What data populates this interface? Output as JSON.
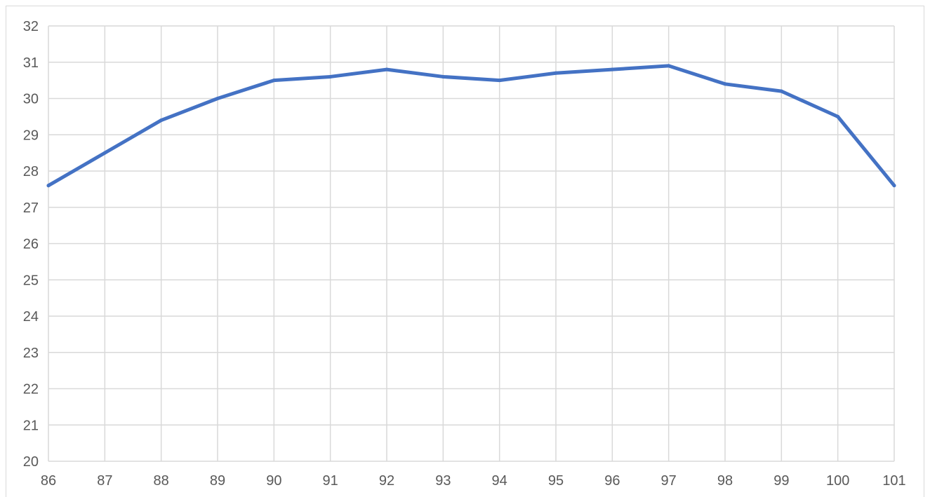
{
  "chart_data": {
    "type": "line",
    "title": "",
    "xlabel": "",
    "ylabel": "",
    "x": [
      86,
      87,
      88,
      89,
      90,
      91,
      92,
      93,
      94,
      95,
      96,
      97,
      98,
      99,
      100,
      101
    ],
    "series": [
      {
        "values": [
          27.6,
          28.5,
          29.4,
          30.0,
          30.5,
          30.6,
          30.8,
          30.6,
          30.5,
          30.7,
          30.8,
          30.9,
          30.4,
          30.2,
          29.5,
          27.6
        ]
      }
    ],
    "ylim": [
      20,
      32
    ],
    "y_ticks": [
      20,
      21,
      22,
      23,
      24,
      25,
      26,
      27,
      28,
      29,
      30,
      31,
      32
    ],
    "x_tick_labels": [
      "86",
      "87",
      "88",
      "89",
      "90",
      "91",
      "92",
      "93",
      "94",
      "95",
      "96",
      "97",
      "98",
      "99",
      "100",
      "101"
    ],
    "y_tick_labels": [
      "20",
      "21",
      "22",
      "23",
      "24",
      "25",
      "26",
      "27",
      "28",
      "29",
      "30",
      "31",
      "32"
    ],
    "grid": true,
    "legend": "none",
    "colors": {
      "series": "#4472C4",
      "grid": "#D9D9D9",
      "text": "#595959"
    }
  }
}
